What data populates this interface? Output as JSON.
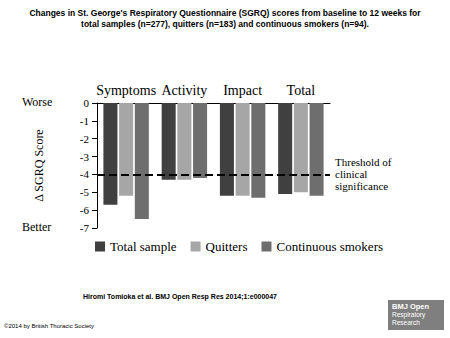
{
  "page": {
    "title": "Changes in St. George's Respiratory Questionnaire (SGRQ) scores from baseline to 12 weeks for total samples (n=277), quitters (n=183) and continuous smokers (n=94).",
    "citation": "Hiromi Tomioka et al. BMJ Open Resp Res 2014;1:e000047",
    "copyright": "©2014 by British Thoracic Society",
    "logo": [
      "BMJ Open",
      "Respiratory",
      "Research"
    ]
  },
  "chart_data": {
    "type": "bar",
    "y_label": "Δ SGRQ Score",
    "axis_end_labels": [
      "Worse",
      "Better"
    ],
    "categories": [
      "Symptoms",
      "Activity",
      "Impact",
      "Total"
    ],
    "series": [
      {
        "name": "Total sample",
        "color": "#404040",
        "values": [
          -5.7,
          -4.3,
          -5.2,
          -5.1
        ]
      },
      {
        "name": "Quitters",
        "color": "#a6a6a6",
        "values": [
          -5.2,
          -4.3,
          -5.2,
          -5.0
        ]
      },
      {
        "name": "Continuous smokers",
        "color": "#6e6e6e",
        "values": [
          -6.5,
          -4.2,
          -5.3,
          -5.2
        ]
      }
    ],
    "annotations": [
      {
        "y": -4,
        "text": "Threshold of clinical significance",
        "line_style": "dashed"
      }
    ],
    "ylim": [
      -7,
      0
    ],
    "yticks": [
      -7,
      -6,
      -5,
      -4,
      -3,
      -2,
      -1,
      0
    ],
    "grid": false,
    "legend": "bottom"
  }
}
